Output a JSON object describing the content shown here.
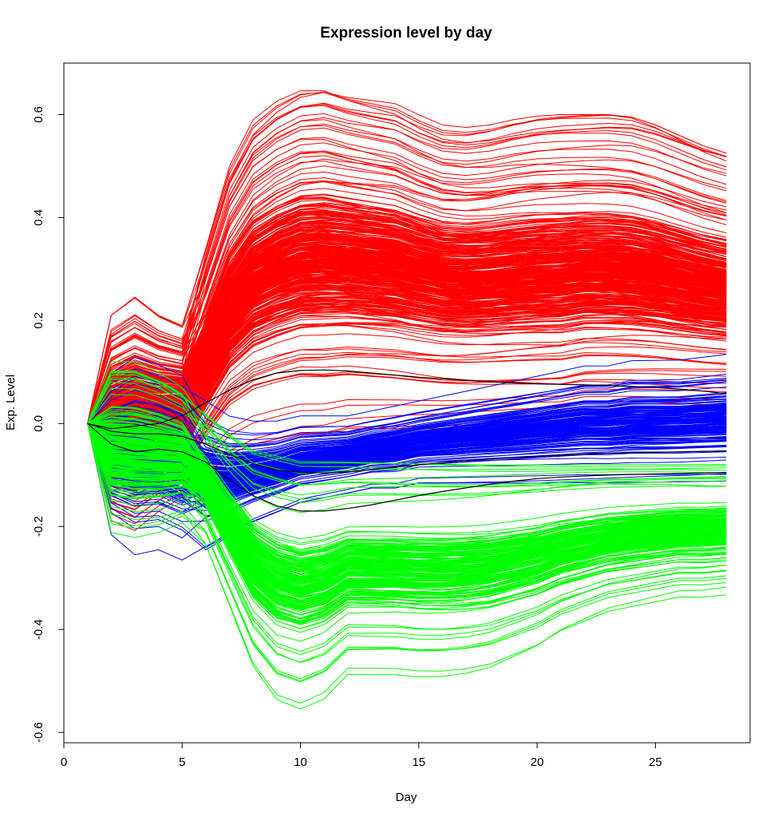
{
  "chart_data": {
    "type": "line",
    "title": "Expression level by day",
    "xlabel": "Day",
    "ylabel": "Exp. Level",
    "xlim": [
      0,
      29
    ],
    "ylim": [
      -0.62,
      0.7
    ],
    "x_ticks": [
      0,
      5,
      10,
      15,
      20,
      25
    ],
    "y_ticks": [
      -0.6,
      -0.4,
      -0.2,
      0.0,
      0.2,
      0.4,
      0.6
    ],
    "x_tick_labels": [
      "0",
      "5",
      "10",
      "15",
      "20",
      "25"
    ],
    "y_tick_labels": [
      "-0.6",
      "-0.4",
      "-0.2",
      "0.0",
      "0.2",
      "0.4",
      "0.6"
    ],
    "grid": false,
    "legend": "none",
    "x": [
      1,
      2,
      3,
      4,
      5,
      6,
      7,
      8,
      9,
      10,
      11,
      12,
      13,
      14,
      15,
      16,
      17,
      18,
      19,
      20,
      21,
      22,
      23,
      24,
      25,
      26,
      27,
      28
    ],
    "series_groups": [
      {
        "color": "#ff0000",
        "line_count": 420,
        "envelope_min": [
          0,
          -0.2,
          -0.22,
          -0.18,
          -0.15,
          -0.1,
          -0.06,
          -0.04,
          -0.03,
          -0.02,
          -0.02,
          -0.01,
          -0.01,
          -0.01,
          -0.01,
          -0.01,
          -0.01,
          -0.01,
          -0.01,
          -0.01,
          -0.01,
          0.0,
          0.0,
          0.0,
          0.0,
          0.0,
          0.0,
          0.0
        ],
        "envelope_max": [
          0,
          0.21,
          0.245,
          0.21,
          0.19,
          0.34,
          0.5,
          0.59,
          0.63,
          0.655,
          0.66,
          0.645,
          0.635,
          0.625,
          0.6,
          0.58,
          0.575,
          0.58,
          0.59,
          0.597,
          0.6,
          0.6,
          0.6,
          0.595,
          0.58,
          0.56,
          0.54,
          0.525
        ]
      },
      {
        "color": "#0000ff",
        "line_count": 170,
        "envelope_min": [
          0,
          -0.22,
          -0.26,
          -0.25,
          -0.27,
          -0.26,
          -0.23,
          -0.2,
          -0.18,
          -0.16,
          -0.15,
          -0.14,
          -0.13,
          -0.13,
          -0.12,
          -0.12,
          -0.12,
          -0.12,
          -0.12,
          -0.12,
          -0.12,
          -0.12,
          -0.12,
          -0.12,
          -0.12,
          -0.12,
          -0.12,
          -0.12
        ],
        "envelope_max": [
          0,
          0.11,
          0.145,
          0.13,
          0.11,
          0.05,
          0.02,
          0.01,
          0.01,
          0.02,
          0.02,
          0.02,
          0.03,
          0.04,
          0.05,
          0.06,
          0.07,
          0.08,
          0.09,
          0.1,
          0.11,
          0.12,
          0.12,
          0.13,
          0.13,
          0.13,
          0.135,
          0.14
        ]
      },
      {
        "color": "#00ff00",
        "line_count": 220,
        "envelope_min": [
          0,
          -0.22,
          -0.23,
          -0.22,
          -0.2,
          -0.25,
          -0.37,
          -0.49,
          -0.555,
          -0.572,
          -0.55,
          -0.5,
          -0.5,
          -0.5,
          -0.505,
          -0.505,
          -0.5,
          -0.49,
          -0.47,
          -0.45,
          -0.42,
          -0.4,
          -0.38,
          -0.37,
          -0.36,
          -0.35,
          -0.35,
          -0.345
        ],
        "envelope_max": [
          0,
          0.12,
          0.12,
          0.1,
          0.07,
          0.02,
          -0.02,
          -0.05,
          -0.06,
          -0.07,
          -0.07,
          -0.07,
          -0.07,
          -0.07,
          -0.07,
          -0.07,
          -0.07,
          -0.07,
          -0.07,
          -0.07,
          -0.07,
          -0.07,
          -0.07,
          -0.07,
          -0.07,
          -0.07,
          -0.07,
          -0.07
        ]
      }
    ],
    "series": [
      {
        "color": "#000000",
        "values": [
          0,
          -0.01,
          -0.005,
          0.0,
          0.015,
          0.04,
          0.065,
          0.085,
          0.098,
          0.103,
          0.104,
          0.102,
          0.098,
          0.094,
          0.09,
          0.087,
          0.084,
          0.081,
          0.079,
          0.077,
          0.076,
          0.075,
          0.074,
          0.072,
          0.07,
          0.067,
          0.063,
          0.058
        ]
      },
      {
        "color": "#000000",
        "values": [
          0,
          -0.015,
          -0.02,
          -0.02,
          -0.025,
          -0.04,
          -0.06,
          -0.078,
          -0.09,
          -0.095,
          -0.096,
          -0.094,
          -0.09,
          -0.085,
          -0.08,
          -0.076,
          -0.072,
          -0.069,
          -0.066,
          -0.064,
          -0.062,
          -0.06,
          -0.058,
          -0.057,
          -0.056,
          -0.055,
          -0.054,
          -0.053
        ]
      },
      {
        "color": "#000000",
        "values": [
          0,
          -0.04,
          -0.055,
          -0.05,
          -0.055,
          -0.075,
          -0.11,
          -0.14,
          -0.16,
          -0.17,
          -0.17,
          -0.165,
          -0.158,
          -0.149,
          -0.14,
          -0.132,
          -0.125,
          -0.118,
          -0.112,
          -0.107,
          -0.104,
          -0.102,
          -0.1,
          -0.099,
          -0.098,
          -0.097,
          -0.096,
          -0.095
        ]
      }
    ]
  }
}
